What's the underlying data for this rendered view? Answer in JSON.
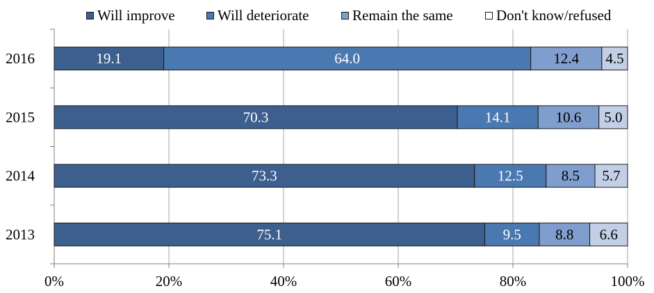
{
  "chart_data": {
    "type": "bar",
    "orientation": "horizontal",
    "stacked": true,
    "percent": true,
    "categories": [
      "2016",
      "2015",
      "2014",
      "2013"
    ],
    "series": [
      {
        "name": "Will improve",
        "color": "#3d5f8e",
        "values": [
          19.1,
          70.3,
          73.3,
          75.1
        ]
      },
      {
        "name": "Will deteriorate",
        "color": "#4a78b0",
        "values": [
          64.0,
          14.1,
          12.5,
          9.5
        ]
      },
      {
        "name": "Remain the same",
        "color": "#7f9dcd",
        "values": [
          12.4,
          10.6,
          8.5,
          8.8
        ]
      },
      {
        "name": "Don't know/refused",
        "color": "#c3cfe6",
        "values": [
          4.5,
          5.0,
          5.7,
          6.6
        ]
      }
    ],
    "data_labels": [
      [
        "19.1",
        "64.0",
        "12.4",
        "4.5"
      ],
      [
        "70.3",
        "14.1",
        "10.6",
        "5.0"
      ],
      [
        "73.3",
        "12.5",
        "8.5",
        "5.7"
      ],
      [
        "75.1",
        "9.5",
        "8.8",
        "6.6"
      ]
    ],
    "label_colors": [
      "#ffffff",
      "#ffffff",
      "#000000",
      "#000000"
    ],
    "xlim": [
      0,
      100
    ],
    "xticks": [
      0,
      20,
      40,
      60,
      80,
      100
    ],
    "xtick_labels": [
      "0%",
      "20%",
      "40%",
      "60%",
      "80%",
      "100%"
    ],
    "grid": true,
    "legend_position": "top"
  }
}
